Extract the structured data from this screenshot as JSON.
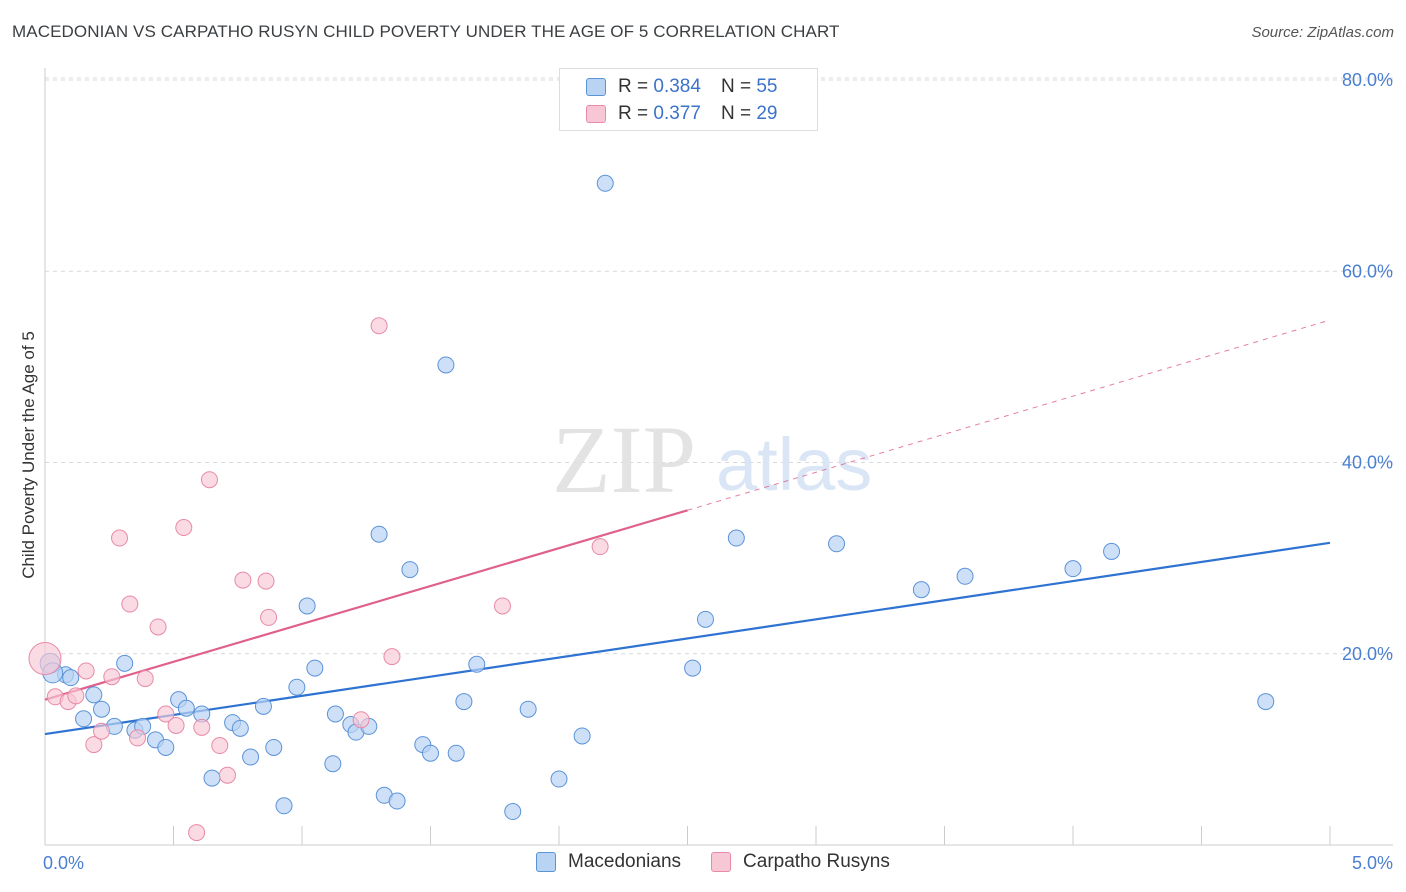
{
  "title": "MACEDONIAN VS CARPATHO RUSYN CHILD POVERTY UNDER THE AGE OF 5 CORRELATION CHART",
  "source": "Source: ZipAtlas.com",
  "watermark": {
    "zip": "ZIP",
    "atlas": "atlas"
  },
  "legend": {
    "rows": [
      {
        "r_label": "R =",
        "r_value": "0.384",
        "n_label": "N =",
        "n_value": "55"
      },
      {
        "r_label": "R =",
        "r_value": "0.377",
        "n_label": "N =",
        "n_value": "29"
      }
    ]
  },
  "colors": {
    "blue_fill": "#b9d3f3",
    "blue_stroke": "#5b93d8",
    "blue_line": "#2e72d2",
    "pink_fill": "#f8c7d6",
    "pink_stroke": "#e88aa8",
    "pink_line": "#e0608c",
    "grid": "#d9d9d9",
    "tick_text": "#4a7fd1"
  },
  "chart_data": {
    "type": "scatter",
    "title": "MACEDONIAN VS CARPATHO RUSYN CHILD POVERTY UNDER THE AGE OF 5 CORRELATION CHART",
    "xlabel": "",
    "ylabel": "Child Poverty Under the Age of 5",
    "xlim": [
      0,
      5.0
    ],
    "ylim": [
      0,
      80
    ],
    "x_tick_labels": [
      "0.0%",
      "5.0%"
    ],
    "y_ticks": [
      20,
      40,
      60,
      80
    ],
    "y_tick_labels": [
      "20.0%",
      "40.0%",
      "60.0%",
      "80.0%"
    ],
    "grid": true,
    "legend_position": "top-center",
    "series": [
      {
        "name": "Macedonians",
        "color": "#b9d3f3",
        "stat": {
          "R": 0.384,
          "N": 55
        },
        "trend": {
          "x0": 0.0,
          "y0": 11.6,
          "x1": 5.0,
          "y1": 31.6,
          "style": "solid"
        },
        "points": [
          [
            0.02,
            19.0
          ],
          [
            0.08,
            17.8
          ],
          [
            0.1,
            17.5
          ],
          [
            0.15,
            13.2
          ],
          [
            0.19,
            15.7
          ],
          [
            0.22,
            14.2
          ],
          [
            0.27,
            12.4
          ],
          [
            0.31,
            19.0
          ],
          [
            0.35,
            12.0
          ],
          [
            0.38,
            12.4
          ],
          [
            0.43,
            11.0
          ],
          [
            0.47,
            10.2
          ],
          [
            0.52,
            15.2
          ],
          [
            0.55,
            14.3
          ],
          [
            0.61,
            13.7
          ],
          [
            0.65,
            7.0
          ],
          [
            0.73,
            12.8
          ],
          [
            0.76,
            12.2
          ],
          [
            0.8,
            9.2
          ],
          [
            0.85,
            14.5
          ],
          [
            0.89,
            10.2
          ],
          [
            0.93,
            4.1
          ],
          [
            0.98,
            16.5
          ],
          [
            1.02,
            25.0
          ],
          [
            1.05,
            18.5
          ],
          [
            1.12,
            8.5
          ],
          [
            1.13,
            13.7
          ],
          [
            1.19,
            12.6
          ],
          [
            1.21,
            11.8
          ],
          [
            1.26,
            12.4
          ],
          [
            1.3,
            32.5
          ],
          [
            1.32,
            5.2
          ],
          [
            1.37,
            4.6
          ],
          [
            1.42,
            28.8
          ],
          [
            1.47,
            10.5
          ],
          [
            1.5,
            9.6
          ],
          [
            1.56,
            50.2
          ],
          [
            1.6,
            9.6
          ],
          [
            1.63,
            15.0
          ],
          [
            1.68,
            18.9
          ],
          [
            1.82,
            3.5
          ],
          [
            1.88,
            14.2
          ],
          [
            2.0,
            6.9
          ],
          [
            2.09,
            11.4
          ],
          [
            2.18,
            69.2
          ],
          [
            2.52,
            18.5
          ],
          [
            2.57,
            23.6
          ],
          [
            2.69,
            32.1
          ],
          [
            3.08,
            31.5
          ],
          [
            3.41,
            26.7
          ],
          [
            3.58,
            28.1
          ],
          [
            4.0,
            28.9
          ],
          [
            4.15,
            30.7
          ],
          [
            4.75,
            15.0
          ],
          [
            0.03,
            18.0
          ]
        ]
      },
      {
        "name": "Carpatho Rusyns",
        "color": "#f8c7d6",
        "stat": {
          "R": 0.377,
          "N": 29
        },
        "trend": {
          "x0": 0.0,
          "y0": 15.2,
          "x1": 2.5,
          "y1": 35.0,
          "x_dash_end": 5.0,
          "y_dash_end": 54.9,
          "style": "solid-then-dashed"
        },
        "points": [
          [
            0.0,
            19.5
          ],
          [
            0.04,
            15.5
          ],
          [
            0.09,
            15.0
          ],
          [
            0.12,
            15.6
          ],
          [
            0.16,
            18.2
          ],
          [
            0.19,
            10.5
          ],
          [
            0.22,
            11.9
          ],
          [
            0.26,
            17.6
          ],
          [
            0.29,
            32.1
          ],
          [
            0.33,
            25.2
          ],
          [
            0.36,
            11.2
          ],
          [
            0.39,
            17.4
          ],
          [
            0.44,
            22.8
          ],
          [
            0.47,
            13.7
          ],
          [
            0.51,
            12.5
          ],
          [
            0.54,
            33.2
          ],
          [
            0.59,
            1.3
          ],
          [
            0.61,
            12.3
          ],
          [
            0.64,
            38.2
          ],
          [
            0.68,
            10.4
          ],
          [
            0.71,
            7.3
          ],
          [
            0.77,
            27.7
          ],
          [
            0.86,
            27.6
          ],
          [
            0.87,
            23.8
          ],
          [
            1.23,
            13.1
          ],
          [
            1.3,
            54.3
          ],
          [
            1.35,
            19.7
          ],
          [
            1.78,
            25.0
          ],
          [
            2.16,
            31.2
          ]
        ]
      }
    ]
  },
  "bottom_legend": [
    "Macedonians",
    "Carpatho Rusyns"
  ]
}
